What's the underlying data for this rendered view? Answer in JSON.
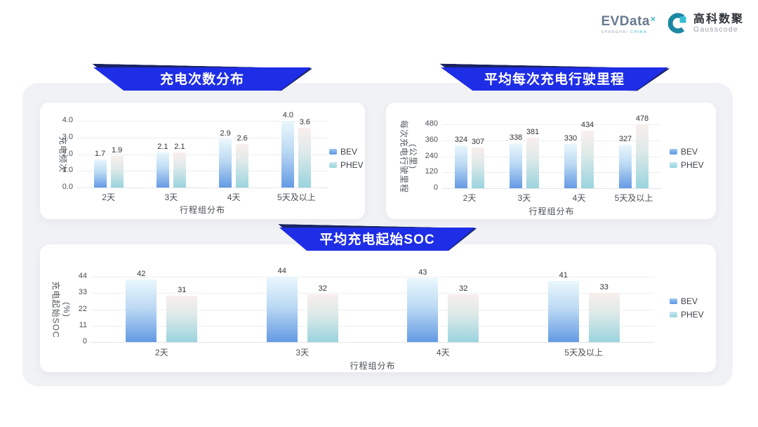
{
  "header": {
    "evdata": {
      "wordmark": "EVData",
      "sup": "×",
      "tagline_left": "SHANGHAI",
      "tagline_right": "CHINA"
    },
    "gausscode": {
      "name": "高科数聚",
      "subname": "Gausscode"
    }
  },
  "colors": {
    "banner_blue": "#1e2de6",
    "banner_edge": "#1a2362",
    "panel_bg": "#f1f2f5",
    "bev_bar_bottom": "#649ae4",
    "bev_bar_top": "#eaf7fc",
    "phev_bar_bottom": "#9ad4de",
    "phev_bar_top": "#f9efec",
    "teal_accent": "#2fb7c9"
  },
  "chart_data": [
    {
      "type": "bar",
      "title": "充电次数分布",
      "categories": [
        "2天",
        "3天",
        "4天",
        "5天及以上"
      ],
      "series": [
        {
          "name": "BEV",
          "values": [
            1.7,
            2.1,
            2.9,
            4.0
          ],
          "labels": [
            "1.7",
            "2.1",
            "2.9",
            "4.0"
          ]
        },
        {
          "name": "PHEV",
          "values": [
            1.9,
            2.1,
            2.6,
            3.6
          ],
          "labels": [
            "1.9",
            "2.1",
            "2.6",
            "3.6"
          ]
        }
      ],
      "xlabel": "行程组分布",
      "ylabel_lines": [
        "充电频次"
      ],
      "ylim": [
        0,
        4
      ],
      "yticks": [
        "0.0",
        "1.0",
        "2.0",
        "3.0",
        "4.0"
      ],
      "grid": true,
      "legend": [
        "BEV",
        "PHEV"
      ],
      "legend_position": "right"
    },
    {
      "type": "bar",
      "title": "平均每次充电行驶里程",
      "categories": [
        "2天",
        "3天",
        "4天",
        "5天及以上"
      ],
      "series": [
        {
          "name": "BEV",
          "values": [
            324,
            338,
            330,
            327
          ],
          "labels": [
            "324",
            "338",
            "330",
            "327"
          ]
        },
        {
          "name": "PHEV",
          "values": [
            307,
            381,
            434,
            478
          ],
          "labels": [
            "307",
            "381",
            "434",
            "478"
          ]
        }
      ],
      "xlabel": "行程组分布",
      "ylabel_lines": [
        "每次充电行驶里程",
        "(公里)"
      ],
      "ylim": [
        0,
        480
      ],
      "yticks": [
        "0",
        "120",
        "240",
        "360",
        "480"
      ],
      "grid": true,
      "legend": [
        "BEV",
        "PHEV"
      ],
      "legend_position": "right"
    },
    {
      "type": "bar",
      "title": "平均充电起始SOC",
      "categories": [
        "2天",
        "3天",
        "4天",
        "5天及以上"
      ],
      "series": [
        {
          "name": "BEV",
          "values": [
            42,
            44,
            43,
            41
          ],
          "labels": [
            "42",
            "44",
            "43",
            "41"
          ]
        },
        {
          "name": "PHEV",
          "values": [
            31,
            32,
            32,
            33
          ],
          "labels": [
            "31",
            "32",
            "32",
            "33"
          ]
        }
      ],
      "xlabel": "行程组分布",
      "ylabel_lines": [
        "充电起始SOC",
        "(%)"
      ],
      "ylim": [
        0,
        44
      ],
      "yticks": [
        "0",
        "11",
        "22",
        "33",
        "44"
      ],
      "grid": true,
      "legend": [
        "BEV",
        "PHEV"
      ],
      "legend_position": "right"
    }
  ]
}
